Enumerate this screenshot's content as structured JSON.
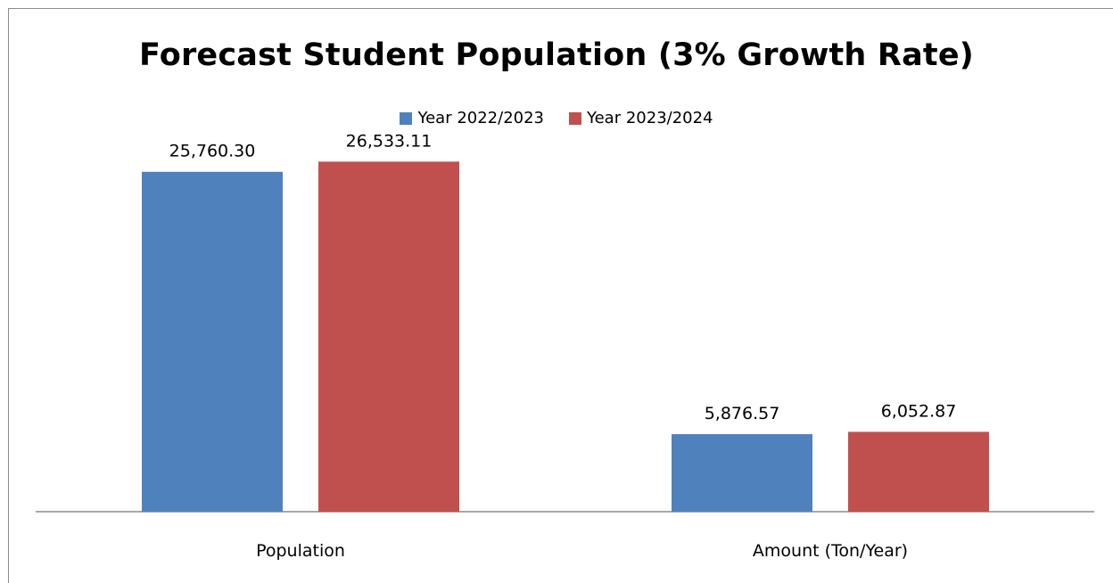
{
  "chart_data": {
    "type": "bar",
    "title": "Forecast Student Population (3% Growth Rate)",
    "categories": [
      "Population",
      "Amount (Ton/Year)"
    ],
    "series": [
      {
        "name": "Year 2022/2023",
        "color": "#4f81bd",
        "values": [
          25760.3,
          5876.57
        ],
        "labels": [
          "25,760.30",
          "5,876.57"
        ]
      },
      {
        "name": "Year 2023/2024",
        "color": "#c0504d",
        "values": [
          26533.11,
          6052.87
        ],
        "labels": [
          "26,533.11",
          "6,052.87"
        ]
      }
    ],
    "ylim": [
      0,
      30000
    ],
    "grid": false,
    "legend_position": "top",
    "axis_color": "#8c8c8c"
  }
}
